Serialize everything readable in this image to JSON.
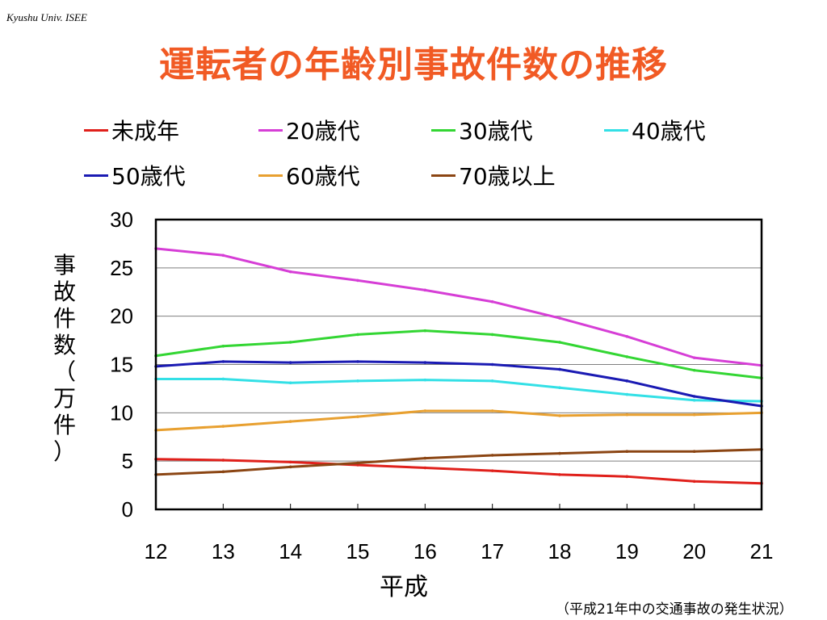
{
  "header": {
    "org": "Kyushu Univ. ISEE",
    "title": "運転者の年齢別事故件数の推移"
  },
  "footer": {
    "source": "（平成21年中の交通事故の発生状況）"
  },
  "chart_data": {
    "type": "line",
    "title": "運転者の年齢別事故件数の推移",
    "xlabel": "平成",
    "ylabel": "事故件数（万件）",
    "ylabel_chars": [
      "事",
      "故",
      "件",
      "数",
      "（",
      "万",
      "件",
      "）"
    ],
    "x": [
      12,
      13,
      14,
      15,
      16,
      17,
      18,
      19,
      20,
      21
    ],
    "x_tick_labels": [
      "12",
      "13",
      "14",
      "15",
      "16",
      "17",
      "18",
      "19",
      "20",
      "21"
    ],
    "y_ticks": [
      0,
      5,
      10,
      15,
      20,
      25,
      30
    ],
    "y_tick_labels": [
      "0",
      "5",
      "10",
      "15",
      "20",
      "25",
      "30"
    ],
    "ylim": [
      0,
      30
    ],
    "grid": "horizontal",
    "legend_position": "top",
    "series": [
      {
        "name": "未成年",
        "color": "#e0201b",
        "values": [
          5.2,
          5.1,
          4.9,
          4.6,
          4.3,
          4.0,
          3.6,
          3.4,
          2.9,
          2.7
        ]
      },
      {
        "name": "20歳代",
        "color": "#d63ed6",
        "values": [
          27.0,
          26.3,
          24.6,
          23.7,
          22.7,
          21.5,
          19.8,
          17.9,
          15.7,
          14.9
        ]
      },
      {
        "name": "30歳代",
        "color": "#33d633",
        "values": [
          15.9,
          16.9,
          17.3,
          18.1,
          18.5,
          18.1,
          17.3,
          15.8,
          14.4,
          13.6
        ]
      },
      {
        "name": "40歳代",
        "color": "#33e0e6",
        "values": [
          13.5,
          13.5,
          13.1,
          13.3,
          13.4,
          13.3,
          12.6,
          11.9,
          11.3,
          11.2
        ]
      },
      {
        "name": "50歳代",
        "color": "#1a1ab3",
        "values": [
          14.8,
          15.3,
          15.2,
          15.3,
          15.2,
          15.0,
          14.5,
          13.3,
          11.7,
          10.7
        ]
      },
      {
        "name": "60歳代",
        "color": "#e8a030",
        "values": [
          8.2,
          8.6,
          9.1,
          9.6,
          10.2,
          10.2,
          9.7,
          9.8,
          9.8,
          10.0
        ]
      },
      {
        "name": "70歳以上",
        "color": "#8b4513",
        "values": [
          3.6,
          3.9,
          4.4,
          4.8,
          5.3,
          5.6,
          5.8,
          6.0,
          6.0,
          6.2
        ]
      }
    ]
  }
}
